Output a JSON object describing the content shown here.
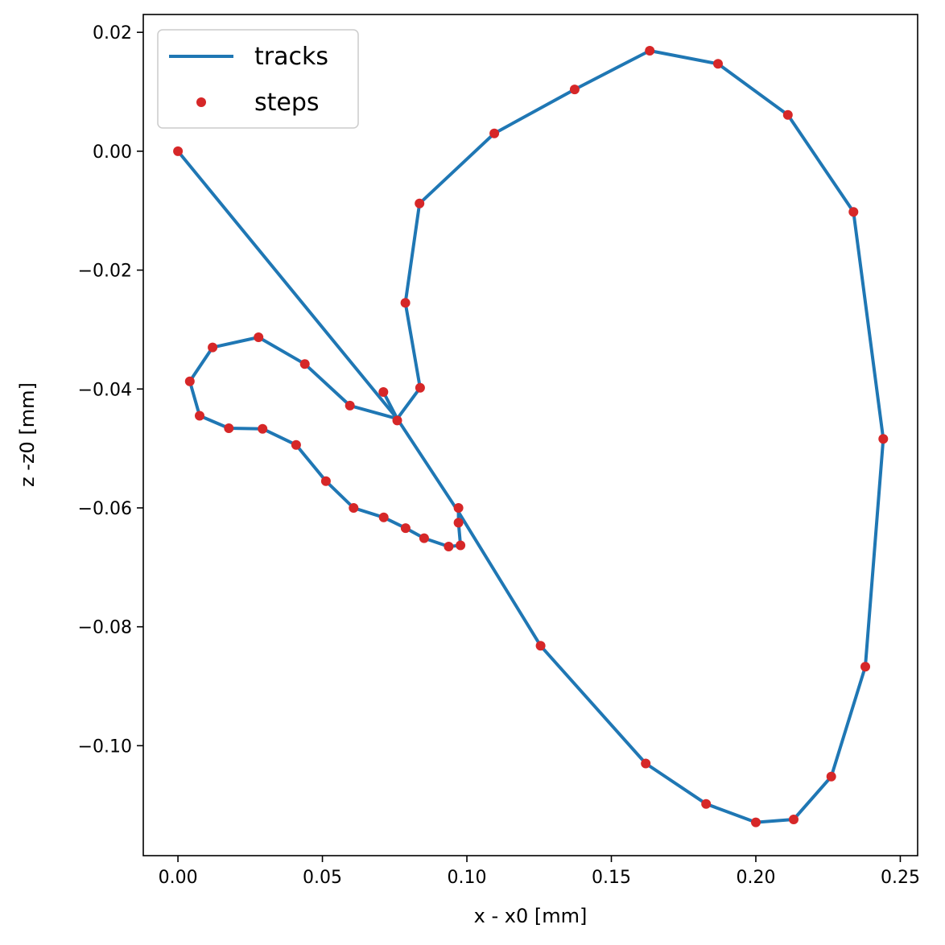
{
  "chart_data": {
    "type": "scatter",
    "title": "",
    "xlabel": "x - x0 [mm]",
    "ylabel": "z -z0 [mm]",
    "xlim": [
      -0.012,
      0.256
    ],
    "ylim": [
      -0.1185,
      0.023
    ],
    "xticks": [
      0.0,
      0.05,
      0.1,
      0.15,
      0.2,
      0.25
    ],
    "xtick_labels": [
      "0.00",
      "0.05",
      "0.10",
      "0.15",
      "0.20",
      "0.25"
    ],
    "yticks": [
      0.02,
      0.0,
      -0.02,
      -0.04,
      -0.06,
      -0.08,
      -0.1
    ],
    "ytick_labels": [
      "0.02",
      "0.00",
      "−0.02",
      "−0.04",
      "−0.06",
      "−0.08",
      "−0.10"
    ],
    "legend": {
      "placement": "top-left",
      "entries": [
        {
          "label": "tracks",
          "kind": "line"
        },
        {
          "label": "steps",
          "kind": "marker"
        }
      ]
    },
    "colors": {
      "tracks": "#1f77b4",
      "steps": "#d62728"
    },
    "tracks": [
      [
        [
          0.0,
          0.0
        ],
        [
          0.0759,
          -0.045
        ],
        [
          0.0971,
          -0.0607
        ],
        [
          0.1255,
          -0.0832
        ],
        [
          0.1619,
          -0.103
        ],
        [
          0.1828,
          -0.1098
        ],
        [
          0.2,
          -0.1129
        ],
        [
          0.2131,
          -0.1124
        ],
        [
          0.2261,
          -0.1052
        ],
        [
          0.2379,
          -0.0867
        ],
        [
          0.2441,
          -0.0484
        ],
        [
          0.2338,
          -0.0102
        ],
        [
          0.2111,
          0.0061
        ],
        [
          0.1869,
          0.0147
        ],
        [
          0.1633,
          0.0169
        ],
        [
          0.1373,
          0.0104
        ],
        [
          0.1095,
          0.003
        ],
        [
          0.0836,
          -0.0088
        ],
        [
          0.0787,
          -0.0255
        ],
        [
          0.0838,
          -0.0398
        ],
        [
          0.0759,
          -0.045
        ]
      ],
      [
        [
          0.0759,
          -0.045
        ],
        [
          0.0711,
          -0.0405
        ],
        [
          0.0759,
          -0.045
        ],
        [
          0.0595,
          -0.0428
        ],
        [
          0.0439,
          -0.0358
        ],
        [
          0.0279,
          -0.0313
        ],
        [
          0.012,
          -0.033
        ],
        [
          0.0041,
          -0.0387
        ],
        [
          0.0075,
          -0.0445
        ],
        [
          0.0176,
          -0.0466
        ],
        [
          0.0293,
          -0.0467
        ],
        [
          0.0409,
          -0.0494
        ],
        [
          0.0512,
          -0.0555
        ],
        [
          0.0608,
          -0.06
        ],
        [
          0.0712,
          -0.0616
        ],
        [
          0.0788,
          -0.0634
        ],
        [
          0.0852,
          -0.0651
        ],
        [
          0.0937,
          -0.0665
        ],
        [
          0.0978,
          -0.0663
        ],
        [
          0.0971,
          -0.0625
        ],
        [
          0.0971,
          -0.06
        ],
        [
          0.0971,
          -0.0607
        ]
      ]
    ],
    "steps": [
      [
        0.0,
        0.0
      ],
      [
        0.0711,
        -0.0405
      ],
      [
        0.0759,
        -0.0453
      ],
      [
        0.0595,
        -0.0428
      ],
      [
        0.0439,
        -0.0358
      ],
      [
        0.0279,
        -0.0313
      ],
      [
        0.012,
        -0.033
      ],
      [
        0.0041,
        -0.0387
      ],
      [
        0.0075,
        -0.0445
      ],
      [
        0.0176,
        -0.0466
      ],
      [
        0.0293,
        -0.0467
      ],
      [
        0.0409,
        -0.0494
      ],
      [
        0.0512,
        -0.0555
      ],
      [
        0.0608,
        -0.06
      ],
      [
        0.0712,
        -0.0616
      ],
      [
        0.0788,
        -0.0634
      ],
      [
        0.0852,
        -0.0651
      ],
      [
        0.0937,
        -0.0665
      ],
      [
        0.0978,
        -0.0663
      ],
      [
        0.0971,
        -0.0625
      ],
      [
        0.0971,
        -0.06
      ],
      [
        0.1255,
        -0.0832
      ],
      [
        0.1619,
        -0.103
      ],
      [
        0.1828,
        -0.1098
      ],
      [
        0.2,
        -0.1129
      ],
      [
        0.2131,
        -0.1124
      ],
      [
        0.2261,
        -0.1052
      ],
      [
        0.2379,
        -0.0867
      ],
      [
        0.2441,
        -0.0484
      ],
      [
        0.2338,
        -0.0102
      ],
      [
        0.2111,
        0.0061
      ],
      [
        0.1869,
        0.0147
      ],
      [
        0.1633,
        0.0169
      ],
      [
        0.1373,
        0.0104
      ],
      [
        0.1095,
        0.003
      ],
      [
        0.0836,
        -0.0088
      ],
      [
        0.0787,
        -0.0255
      ],
      [
        0.0838,
        -0.0398
      ]
    ]
  }
}
